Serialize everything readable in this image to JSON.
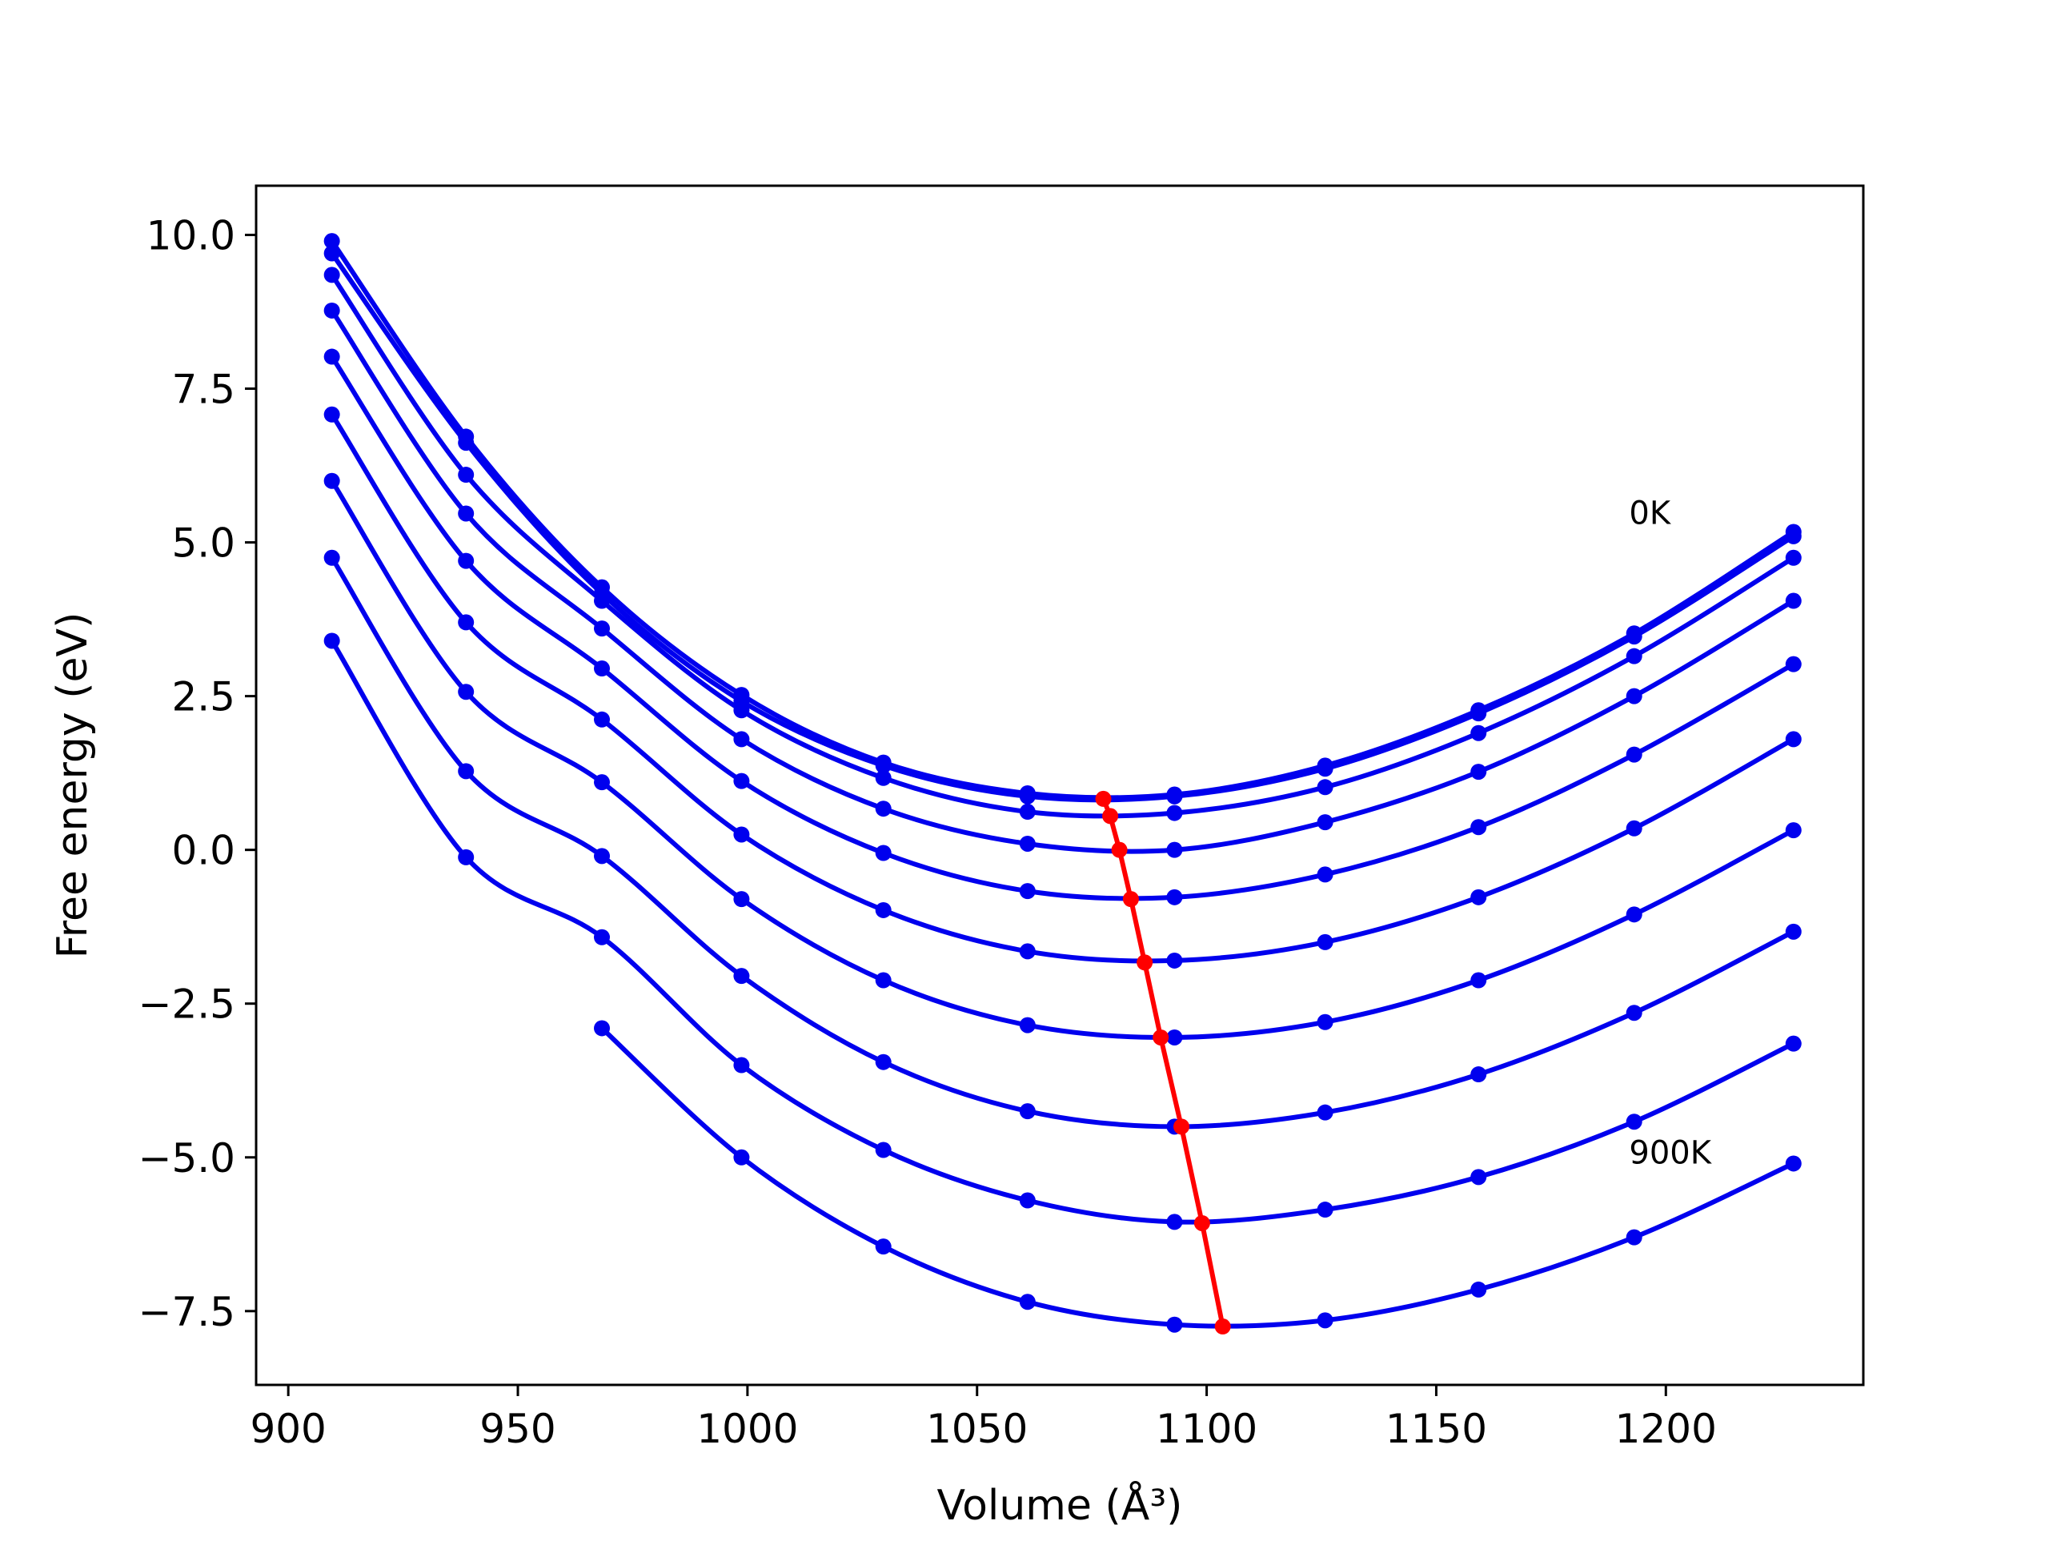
{
  "chart_data": {
    "type": "line",
    "title": "",
    "xlabel": "Volume (Å³)",
    "ylabel": "Free energy (eV)",
    "xlim": [
      893,
      1243
    ],
    "ylim": [
      -8.7,
      10.8
    ],
    "grid": false,
    "legend": "none",
    "x_ticks": [
      900,
      950,
      1000,
      1050,
      1100,
      1150,
      1200
    ],
    "y_ticks": [
      -7.5,
      -5.0,
      -2.5,
      0.0,
      2.5,
      5.0,
      7.5,
      10.0
    ],
    "x_tick_labels": [
      "900",
      "950",
      "1000",
      "1050",
      "1100",
      "1150",
      "1200"
    ],
    "y_tick_labels": [
      "−7.5",
      "−5.0",
      "−2.5",
      "0.0",
      "2.5",
      "5.0",
      "7.5",
      "10.0"
    ],
    "x": [
      909.5,
      938.7,
      968.3,
      998.7,
      1029.6,
      1061.0,
      1093.0,
      1125.8,
      1159.2,
      1193.1,
      1227.8
    ],
    "series": [
      {
        "values": [
          9.9,
          6.72,
          4.27,
          2.52,
          1.42,
          0.92,
          0.9,
          1.37,
          2.27,
          3.52,
          5.17
        ]
      },
      {
        "values": [
          9.7,
          6.62,
          4.17,
          2.42,
          1.37,
          0.87,
          0.87,
          1.32,
          2.22,
          3.47,
          5.1
        ]
      },
      {
        "values": [
          9.35,
          6.1,
          4.05,
          2.27,
          1.17,
          0.62,
          0.6,
          1.02,
          1.9,
          3.15,
          4.75
        ]
      },
      {
        "values": [
          8.77,
          5.47,
          3.6,
          1.8,
          0.67,
          0.1,
          0.0,
          0.45,
          1.27,
          2.5,
          4.05
        ]
      },
      {
        "values": [
          8.02,
          4.7,
          2.95,
          1.12,
          -0.05,
          -0.67,
          -0.77,
          -0.4,
          0.37,
          1.55,
          3.02
        ]
      },
      {
        "values": [
          7.08,
          3.7,
          2.12,
          0.25,
          -0.98,
          -1.65,
          -1.8,
          -1.5,
          -0.77,
          0.35,
          1.8
        ]
      },
      {
        "values": [
          6.0,
          2.57,
          1.1,
          -0.8,
          -2.12,
          -2.85,
          -3.05,
          -2.8,
          -2.12,
          -1.05,
          0.32
        ]
      },
      {
        "values": [
          4.75,
          1.28,
          -0.1,
          -2.05,
          -3.45,
          -4.25,
          -4.5,
          -4.27,
          -3.65,
          -2.65,
          -1.33
        ]
      },
      {
        "values": [
          3.4,
          -0.12,
          -1.42,
          -3.5,
          -4.88,
          -5.7,
          -6.05,
          -5.85,
          -5.32,
          -4.42,
          -3.15
        ]
      },
      {
        "values": [
          null,
          null,
          -2.9,
          -5.0,
          -6.45,
          -7.35,
          -7.72,
          -7.65,
          -7.15,
          -6.3,
          -5.1
        ]
      }
    ],
    "minima": {
      "x": [
        1077.5,
        1079.0,
        1081.0,
        1083.5,
        1086.5,
        1090.0,
        1094.5,
        1099.0,
        1103.5
      ],
      "y": [
        0.83,
        0.55,
        0.0,
        -0.8,
        -1.83,
        -3.05,
        -4.5,
        -6.07,
        -7.75
      ]
    },
    "colors": {
      "series": "#0000ee",
      "minima": "#ff0000",
      "axes": "#000000"
    },
    "annotations": [
      {
        "text": "0K",
        "x": 1192,
        "y": 5.3
      },
      {
        "text": "900K",
        "x": 1192,
        "y": -5.1
      }
    ]
  }
}
